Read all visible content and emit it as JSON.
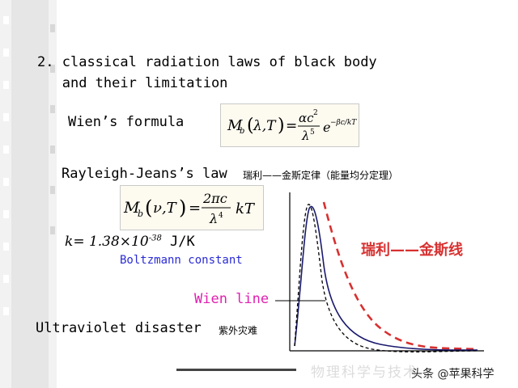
{
  "heading": {
    "number": "2.",
    "line1": "classical radiation laws of black body",
    "line2": "and their limitation"
  },
  "wien": {
    "label": "Wien’s formula"
  },
  "rayleigh_jeans": {
    "label": "Rayleigh-Jeans’s law",
    "chinese": "瑞利——金斯定律（能量均分定理）"
  },
  "constant": {
    "k": "k",
    "eq": "= 1.38×10",
    "exp": "-38",
    "unit": " J/K",
    "name": "Boltzmann constant"
  },
  "ultraviolet": {
    "label": "Ultraviolet disaster",
    "chinese": "紫外灾难"
  },
  "chart_labels": {
    "rj_curve": "瑞利——金斯线",
    "wien_curve": "Wien line"
  },
  "watermark": "物理科学与技术",
  "credit": "头条 @苹果科学",
  "colors": {
    "rj_curve": "#d83030",
    "wien_curve": "#e020b0",
    "planck_curve": "#1a1a6e",
    "boltzmann_text": "#2a2ad6"
  }
}
